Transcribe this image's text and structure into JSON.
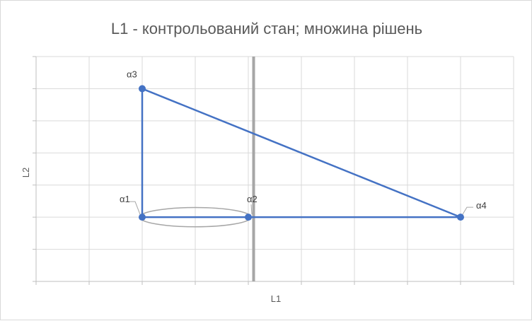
{
  "chart_data": {
    "type": "scatter",
    "title": "L1 - контрольований стан; множина рішень",
    "xlabel": "L1",
    "ylabel": "L2",
    "xlim": [
      0,
      9
    ],
    "ylim": [
      0,
      7
    ],
    "grid": true,
    "legend": "none",
    "points": [
      {
        "label": "α1",
        "x": 2,
        "y": 2
      },
      {
        "label": "α2",
        "x": 4,
        "y": 2
      },
      {
        "label": "α3",
        "x": 2,
        "y": 6
      },
      {
        "label": "α4",
        "x": 8,
        "y": 2
      }
    ],
    "segments": [
      {
        "from": "α3",
        "to": "α1"
      },
      {
        "from": "α1",
        "to": "α4"
      },
      {
        "from": "α3",
        "to": "α4"
      }
    ],
    "vertical_line_x": 4.1,
    "ellipse": {
      "cx": 3,
      "cy": 2,
      "rx": 1.05,
      "ry": 0.3
    },
    "colors": {
      "series": "#4472c4",
      "vline": "#a6a6a6",
      "ellipse": "#a6a6a6",
      "grid": "#d9d9d9",
      "axis": "#bfbfbf"
    }
  }
}
